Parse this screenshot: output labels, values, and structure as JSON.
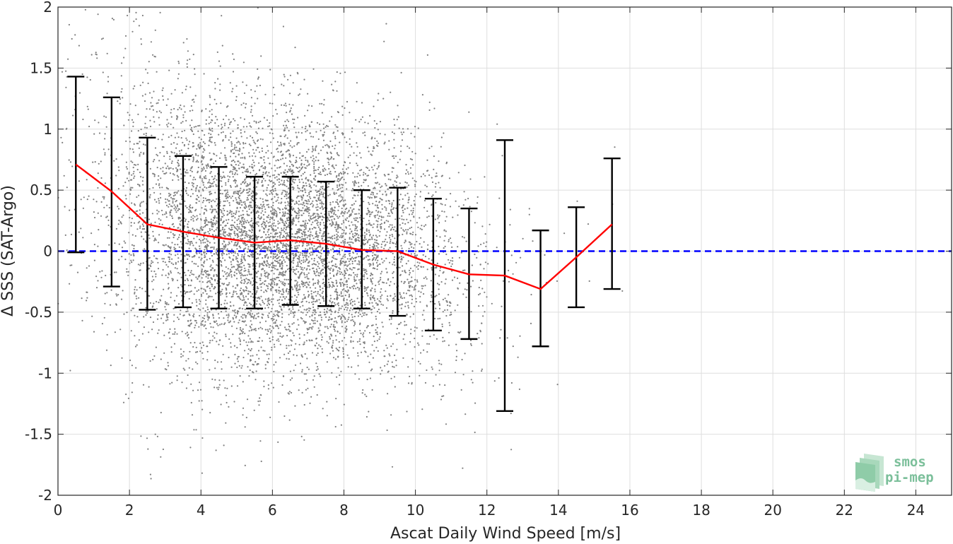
{
  "chart_data": {
    "type": "scatter",
    "xlabel": "Ascat Daily Wind Speed [m/s]",
    "ylabel": "Δ SSS (SAT-Argo)",
    "xlim": [
      0,
      25
    ],
    "ylim": [
      -2,
      2
    ],
    "xticks": [
      "0",
      "2",
      "4",
      "6",
      "8",
      "10",
      "12",
      "14",
      "16",
      "18",
      "20",
      "22",
      "24"
    ],
    "yticks": [
      "-2",
      "-1.5",
      "-1",
      "-0.5",
      "0",
      "0.5",
      "1",
      "1.5",
      "2"
    ],
    "grid": true,
    "reference_line": {
      "y": 0,
      "color": "#0000ff",
      "style": "dashed"
    },
    "scatter_color": "#808080",
    "mean_line_color": "#ff0000",
    "error_bar_color": "#000000",
    "series": [
      {
        "type": "errorbar",
        "x": [
          0.5,
          1.5,
          2.5,
          3.5,
          4.5,
          5.5,
          6.5,
          7.5,
          8.5,
          9.5,
          10.5,
          11.5,
          12.5,
          13.5,
          14.5,
          15.5
        ],
        "mean": [
          0.71,
          0.49,
          0.22,
          0.16,
          0.11,
          0.07,
          0.09,
          0.06,
          0.01,
          0.0,
          -0.11,
          -0.19,
          -0.2,
          -0.31,
          -0.05,
          0.22
        ],
        "upper": [
          1.43,
          1.26,
          0.93,
          0.78,
          0.69,
          0.61,
          0.61,
          0.57,
          0.5,
          0.52,
          0.43,
          0.35,
          0.91,
          0.17,
          0.36,
          0.76
        ],
        "lower": [
          -0.01,
          -0.29,
          -0.48,
          -0.46,
          -0.47,
          -0.47,
          -0.44,
          -0.45,
          -0.47,
          -0.53,
          -0.65,
          -0.72,
          -1.31,
          -0.78,
          -0.46,
          -0.31
        ]
      }
    ],
    "scatter_bins": [
      {
        "x": 0.5,
        "count": 70,
        "sd": 0.7
      },
      {
        "x": 1.5,
        "count": 160,
        "sd": 0.75
      },
      {
        "x": 2.5,
        "count": 380,
        "sd": 0.72
      },
      {
        "x": 3.5,
        "count": 650,
        "sd": 0.62
      },
      {
        "x": 4.5,
        "count": 900,
        "sd": 0.58
      },
      {
        "x": 5.5,
        "count": 1100,
        "sd": 0.54
      },
      {
        "x": 6.5,
        "count": 1150,
        "sd": 0.53
      },
      {
        "x": 7.5,
        "count": 1000,
        "sd": 0.51
      },
      {
        "x": 8.5,
        "count": 750,
        "sd": 0.49
      },
      {
        "x": 9.5,
        "count": 480,
        "sd": 0.52
      },
      {
        "x": 10.5,
        "count": 260,
        "sd": 0.54
      },
      {
        "x": 11.5,
        "count": 110,
        "sd": 0.54
      },
      {
        "x": 12.5,
        "count": 30,
        "sd": 0.6
      },
      {
        "x": 13.5,
        "count": 10,
        "sd": 0.45
      },
      {
        "x": 14.5,
        "count": 5,
        "sd": 0.4
      },
      {
        "x": 15.5,
        "count": 3,
        "sd": 0.5
      }
    ]
  },
  "logo": {
    "line1": "smos",
    "line2": "pi-mep"
  }
}
